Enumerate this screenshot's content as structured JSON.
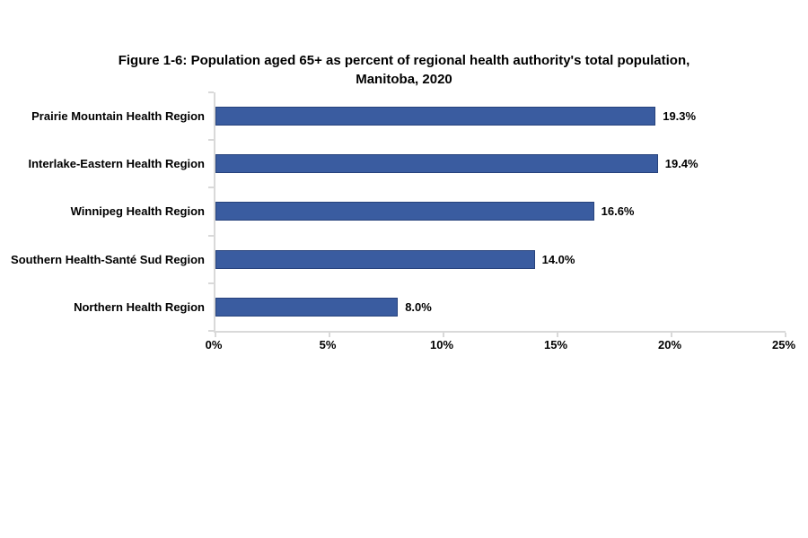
{
  "page": {
    "background_color": "#ffffff"
  },
  "chart_data": {
    "type": "bar",
    "orientation": "horizontal",
    "title": "Figure 1-6: Population aged 65+ as percent of regional health authority's total population, Manitoba, 2020",
    "title_line1": "Figure 1-6: Population aged 65+ as percent of regional health authority's total population,",
    "title_line2": "Manitoba, 2020",
    "categories": [
      "Prairie Mountain Health Region",
      "Interlake-Eastern Health Region",
      "Winnipeg Health Region",
      "Southern Health-Santé Sud Region",
      "Northern Health Region"
    ],
    "values": [
      19.3,
      19.4,
      16.6,
      14.0,
      8.0
    ],
    "value_labels": [
      "19.3%",
      "19.4%",
      "16.6%",
      "14.0%",
      "8.0%"
    ],
    "xlabel": "",
    "ylabel": "",
    "xlim": [
      0,
      25
    ],
    "x_tick_interval": 5,
    "x_ticks": [
      "0%",
      "5%",
      "10%",
      "15%",
      "20%",
      "25%"
    ],
    "x_tick_positions_pct": [
      0,
      20,
      40,
      60,
      80,
      100
    ],
    "grid": false,
    "legend": false,
    "bar_color": "#3A5CA0",
    "bar_border_color": "#27427C",
    "axis_color": "#D9D9D9",
    "text_color": "#000000"
  }
}
